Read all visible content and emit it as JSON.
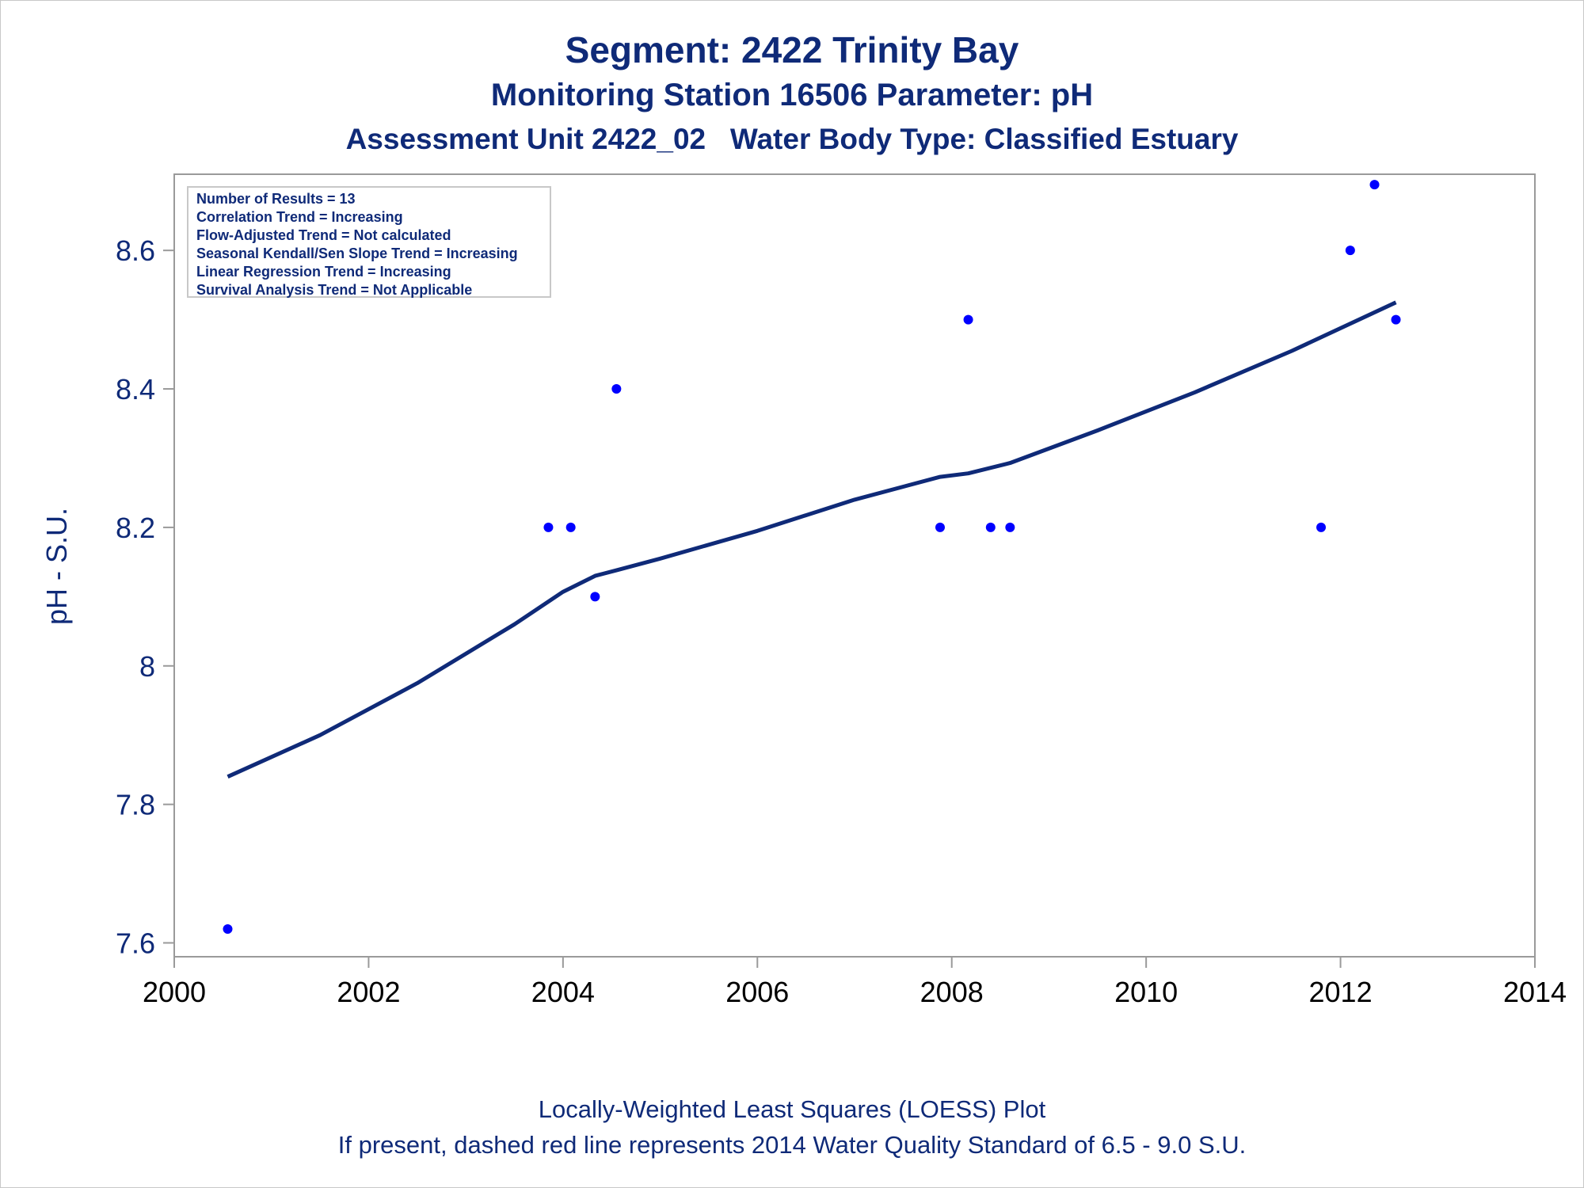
{
  "chart_data": {
    "type": "scatter",
    "title": "Segment: 2422  Trinity Bay",
    "subtitle": "Monitoring Station 16506 Parameter: pH",
    "subtitle2": "Assessment Unit 2422_02   Water Body Type: Classified Estuary",
    "xlabel": "",
    "ylabel": "pH - S.U.",
    "xlim": [
      2000,
      2014
    ],
    "ylim": [
      7.58,
      8.71
    ],
    "x_ticks": [
      2000,
      2002,
      2004,
      2006,
      2008,
      2010,
      2012,
      2014
    ],
    "x_tick_labels": [
      "2000",
      "2002",
      "2004",
      "2006",
      "2008",
      "2010",
      "2012",
      "2014"
    ],
    "y_ticks": [
      7.6,
      7.8,
      8.0,
      8.2,
      8.4,
      8.6
    ],
    "y_tick_labels": [
      "7.6",
      "7.8",
      "8",
      "8.2",
      "8.4",
      "8.6"
    ],
    "grid": false,
    "legend": "none",
    "points": {
      "x": [
        2000.55,
        2003.85,
        2004.08,
        2004.33,
        2004.55,
        2007.88,
        2008.17,
        2008.4,
        2008.6,
        2011.8,
        2012.1,
        2012.35,
        2012.57
      ],
      "y": [
        7.62,
        8.2,
        8.2,
        8.1,
        8.4,
        8.2,
        8.5,
        8.2,
        8.2,
        8.2,
        8.6,
        8.695,
        8.5
      ],
      "color": "#0000ff"
    },
    "loess_line": {
      "x": [
        2000.55,
        2001.5,
        2002.5,
        2003.5,
        2004.0,
        2004.33,
        2004.55,
        2005.0,
        2006.0,
        2007.0,
        2007.88,
        2008.17,
        2008.6,
        2009.5,
        2010.5,
        2011.5,
        2012.57
      ],
      "y": [
        7.84,
        7.9,
        7.975,
        8.06,
        8.107,
        8.13,
        8.138,
        8.155,
        8.195,
        8.24,
        8.273,
        8.278,
        8.293,
        8.34,
        8.395,
        8.455,
        8.525
      ],
      "color": "#0f2a78"
    },
    "stats_box": [
      "Number of Results = 13",
      "Correlation Trend = Increasing",
      "Flow-Adjusted Trend = Not calculated",
      "Seasonal Kendall/Sen Slope Trend = Increasing",
      "Linear Regression Trend = Increasing",
      "Survival Analysis Trend = Not Applicable"
    ],
    "footnotes": [
      "Locally-Weighted Least Squares (LOESS) Plot",
      "If present, dashed red line represents 2014 Water Quality Standard of 6.5 - 9.0 S.U."
    ]
  }
}
